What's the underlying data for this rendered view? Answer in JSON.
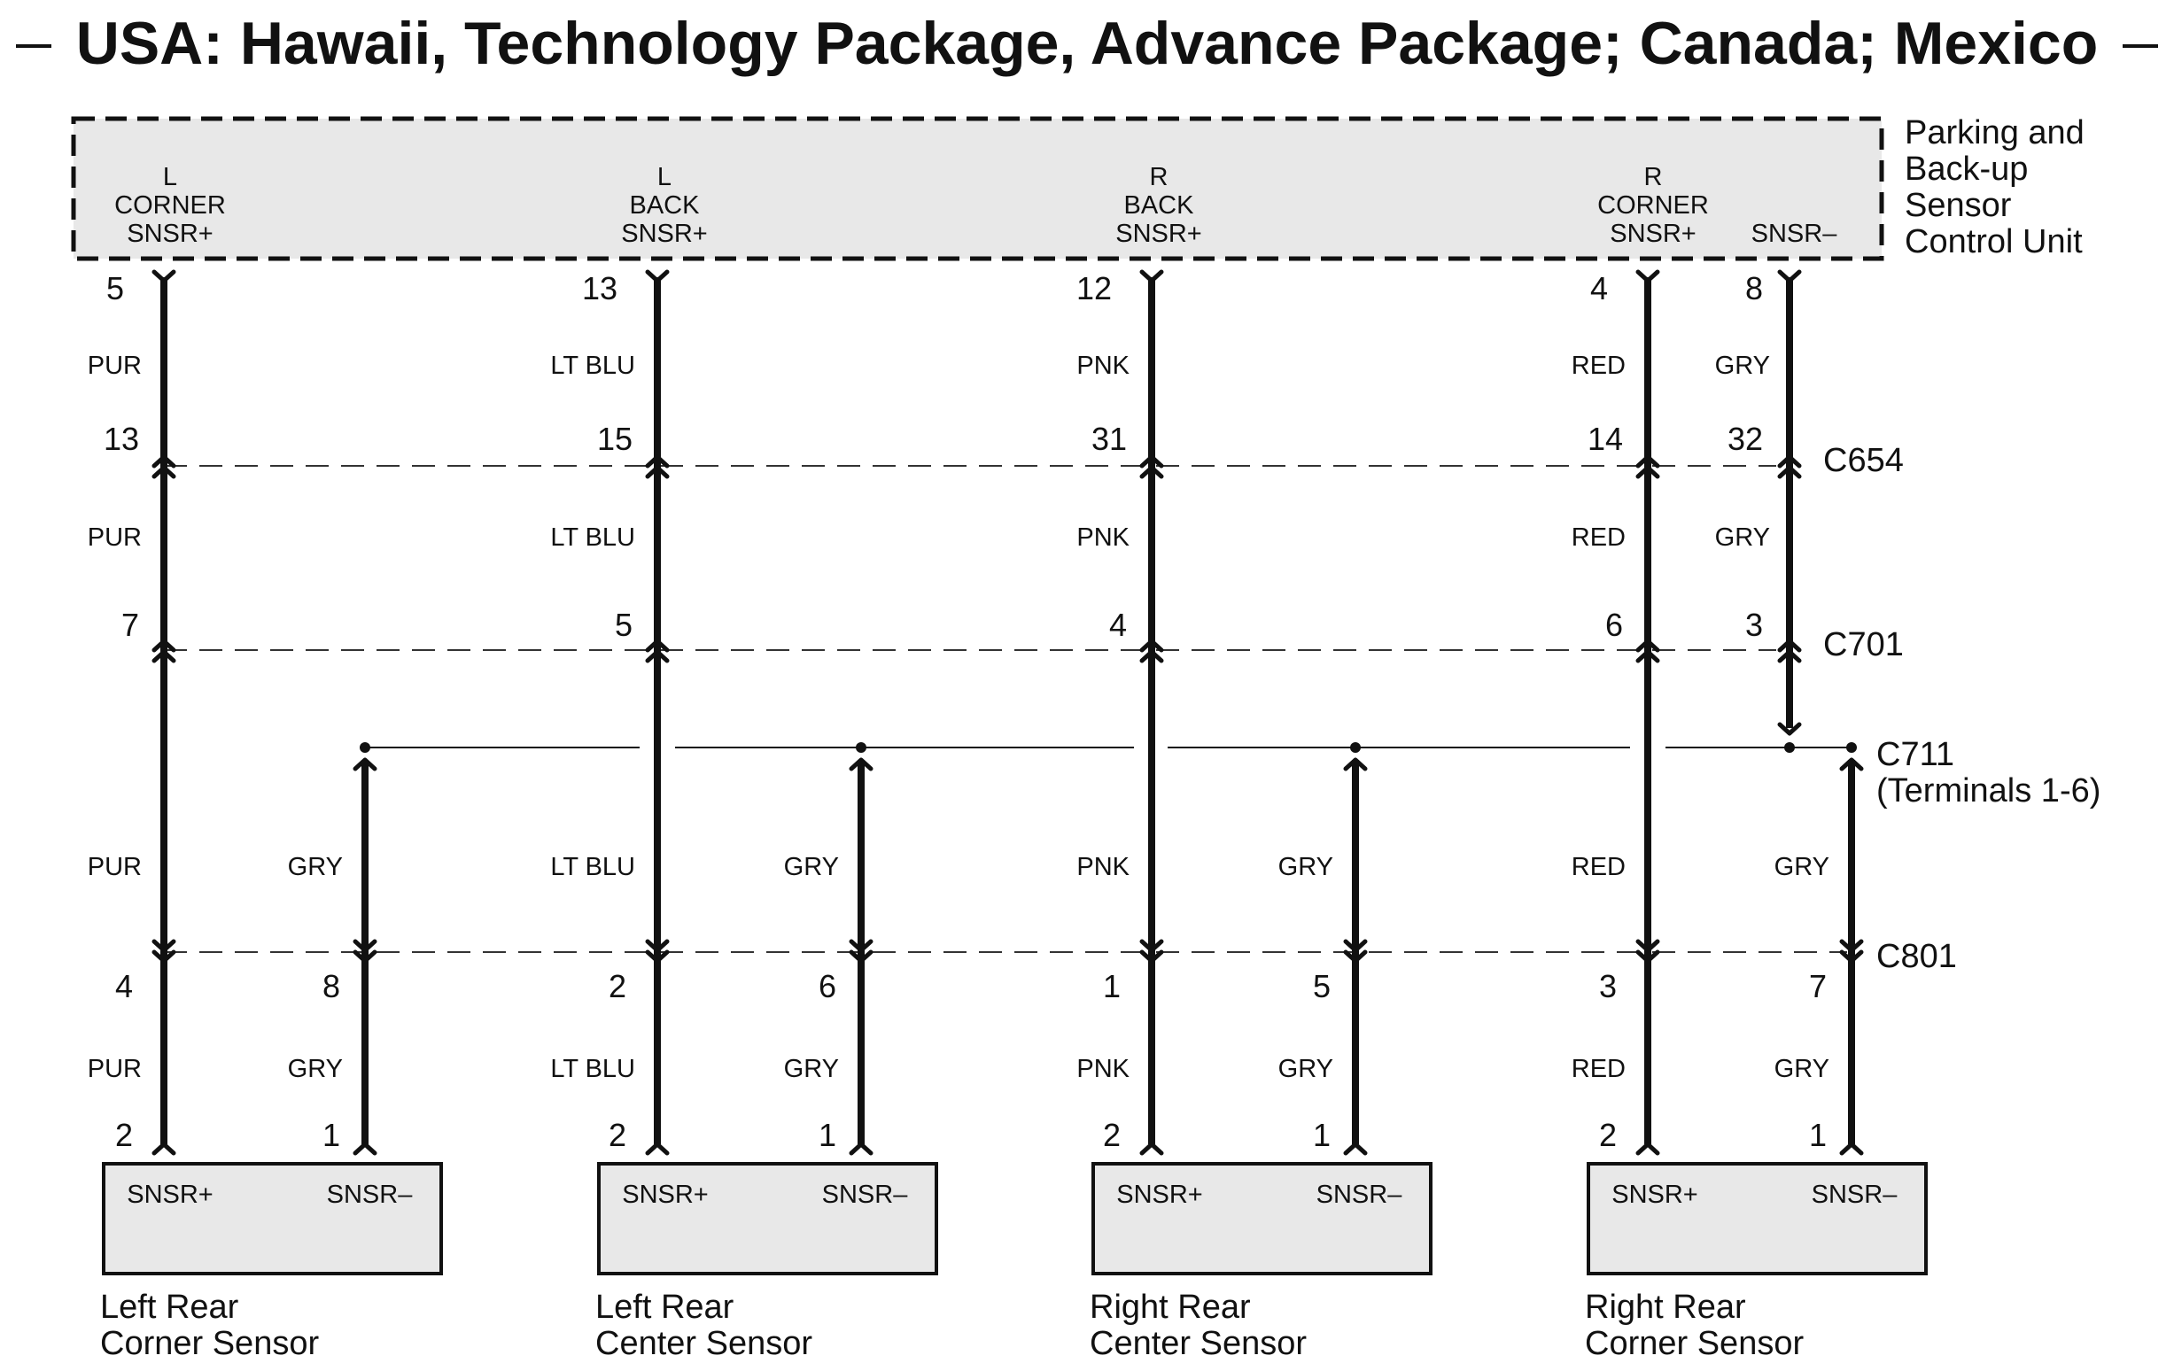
{
  "title": "USA: Hawaii, Technology Package, Advance Package; Canada; Mexico",
  "control_unit": {
    "name_lines": [
      "Parking and",
      "Back-up",
      "Sensor",
      "Control Unit"
    ],
    "terminals": [
      {
        "lines": [
          "L",
          "CORNER",
          "SNSR+"
        ]
      },
      {
        "lines": [
          "L",
          "BACK",
          "SNSR+"
        ]
      },
      {
        "lines": [
          "R",
          "BACK",
          "SNSR+"
        ]
      },
      {
        "lines": [
          "R",
          "CORNER",
          "SNSR+"
        ]
      },
      {
        "lines": [
          "SNSR–"
        ]
      }
    ]
  },
  "connectors": {
    "c654": "C654",
    "c701": "C701",
    "c711": "C711",
    "c711_note": "(Terminals 1-6)",
    "c801": "C801"
  },
  "wires": [
    {
      "cu_pin": "5",
      "color": "PUR",
      "c654_pin": "13",
      "c701_pin": "7",
      "c801_pin": "4",
      "sensor_pin": "2"
    },
    {
      "cu_pin": "13",
      "color": "LT BLU",
      "c654_pin": "15",
      "c701_pin": "5",
      "c801_pin": "2",
      "sensor_pin": "2"
    },
    {
      "cu_pin": "12",
      "color": "PNK",
      "c654_pin": "31",
      "c701_pin": "4",
      "c801_pin": "1",
      "sensor_pin": "2"
    },
    {
      "cu_pin": "4",
      "color": "RED",
      "c654_pin": "14",
      "c701_pin": "6",
      "c801_pin": "3",
      "sensor_pin": "2"
    }
  ],
  "gnd_wire": {
    "cu_pin": "8",
    "color": "GRY",
    "c654_pin": "32",
    "c701_pin": "3"
  },
  "gry_branches": [
    {
      "color": "GRY",
      "c801_pin": "8",
      "sensor_pin": "1"
    },
    {
      "color": "GRY",
      "c801_pin": "6",
      "sensor_pin": "1"
    },
    {
      "color": "GRY",
      "c801_pin": "5",
      "sensor_pin": "1"
    },
    {
      "color": "GRY",
      "c801_pin": "7",
      "sensor_pin": "1"
    }
  ],
  "sensors": [
    {
      "plus": "SNSR+",
      "minus": "SNSR–",
      "name_lines": [
        "Left Rear",
        "Corner Sensor"
      ]
    },
    {
      "plus": "SNSR+",
      "minus": "SNSR–",
      "name_lines": [
        "Left Rear",
        "Center Sensor"
      ]
    },
    {
      "plus": "SNSR+",
      "minus": "SNSR–",
      "name_lines": [
        "Right Rear",
        "Center Sensor"
      ]
    },
    {
      "plus": "SNSR+",
      "minus": "SNSR–",
      "name_lines": [
        "Right Rear",
        "Corner Sensor"
      ]
    }
  ]
}
